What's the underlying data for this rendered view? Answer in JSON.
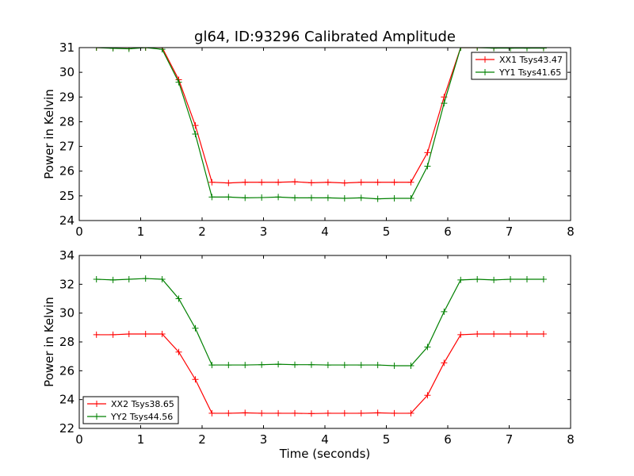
{
  "chart_data": [
    {
      "type": "line",
      "title": "gl64, ID:93296 Calibrated Amplitude",
      "xlabel": "",
      "ylabel": "Power in Kelvin",
      "xlim": [
        0,
        8
      ],
      "ylim": [
        24,
        31
      ],
      "xticks": [
        0,
        1,
        2,
        3,
        4,
        5,
        6,
        7,
        8
      ],
      "yticks": [
        24,
        25,
        26,
        27,
        28,
        29,
        30,
        31
      ],
      "legend_position": "top-right",
      "x": [
        0.28,
        0.55,
        0.81,
        1.08,
        1.35,
        1.62,
        1.89,
        2.16,
        2.43,
        2.7,
        2.97,
        3.24,
        3.51,
        3.78,
        4.05,
        4.32,
        4.59,
        4.86,
        5.13,
        5.4,
        5.67,
        5.94,
        6.21,
        6.48,
        6.75,
        7.02,
        7.29,
        7.56
      ],
      "series": [
        {
          "name": "XX1 Tsys43.47",
          "color": "#ff0000",
          "values": [
            31.0,
            31.0,
            31.0,
            31.0,
            31.0,
            29.7,
            27.85,
            25.55,
            25.52,
            25.55,
            25.55,
            25.55,
            25.57,
            25.53,
            25.55,
            25.52,
            25.55,
            25.55,
            25.55,
            25.55,
            26.75,
            29.0,
            31.0,
            31.0,
            31.0,
            31.0,
            31.0,
            31.0
          ]
        },
        {
          "name": "YY1 Tsys41.65",
          "color": "#008000",
          "values": [
            31.0,
            30.97,
            30.95,
            31.0,
            30.93,
            29.6,
            27.5,
            24.95,
            24.95,
            24.92,
            24.93,
            24.95,
            24.92,
            24.92,
            24.92,
            24.9,
            24.92,
            24.88,
            24.9,
            24.9,
            26.2,
            28.75,
            31.0,
            31.0,
            30.98,
            30.98,
            30.98,
            30.98
          ]
        }
      ]
    },
    {
      "type": "line",
      "title": "",
      "xlabel": "Time (seconds)",
      "ylabel": "Power in Kelvin",
      "xlim": [
        0,
        8
      ],
      "ylim": [
        22,
        34
      ],
      "xticks": [
        0,
        1,
        2,
        3,
        4,
        5,
        6,
        7,
        8
      ],
      "yticks": [
        22,
        24,
        26,
        28,
        30,
        32,
        34
      ],
      "legend_position": "bottom-left",
      "x": [
        0.28,
        0.55,
        0.81,
        1.08,
        1.35,
        1.62,
        1.89,
        2.16,
        2.43,
        2.7,
        2.97,
        3.24,
        3.51,
        3.78,
        4.05,
        4.32,
        4.59,
        4.86,
        5.13,
        5.4,
        5.67,
        5.94,
        6.21,
        6.48,
        6.75,
        7.02,
        7.29,
        7.56
      ],
      "series": [
        {
          "name": "XX2 Tsys38.65",
          "color": "#ff0000",
          "values": [
            28.5,
            28.5,
            28.55,
            28.55,
            28.55,
            27.3,
            25.4,
            23.05,
            23.05,
            23.08,
            23.05,
            23.05,
            23.05,
            23.03,
            23.05,
            23.05,
            23.05,
            23.08,
            23.05,
            23.05,
            24.3,
            26.55,
            28.5,
            28.55,
            28.55,
            28.55,
            28.55,
            28.55
          ]
        },
        {
          "name": "YY2 Tsys44.56",
          "color": "#008000",
          "values": [
            32.35,
            32.3,
            32.35,
            32.4,
            32.35,
            31.0,
            28.95,
            26.4,
            26.4,
            26.4,
            26.42,
            26.45,
            26.42,
            26.42,
            26.4,
            26.4,
            26.4,
            26.4,
            26.35,
            26.35,
            27.65,
            30.1,
            32.3,
            32.35,
            32.3,
            32.35,
            32.35,
            32.35
          ]
        }
      ]
    }
  ]
}
